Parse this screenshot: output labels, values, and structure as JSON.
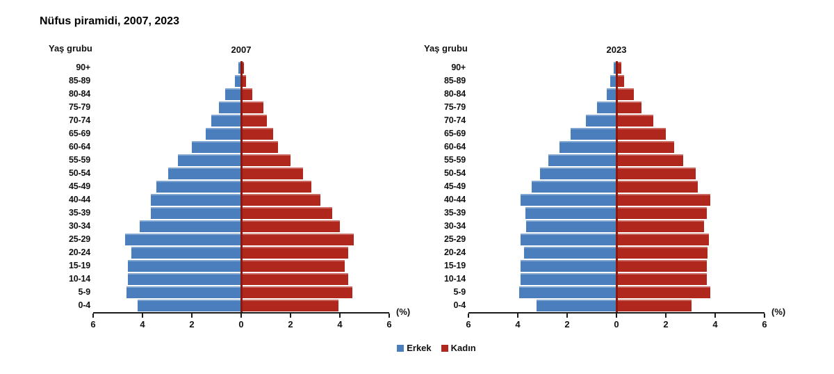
{
  "page": {
    "title": "Nüfus piramidi, 2007, 2023"
  },
  "colors": {
    "male": "#4a7ebc",
    "female": "#b0281d",
    "center_line": "#8a1a10",
    "axis": "#1a1a1a"
  },
  "legend": {
    "items": [
      {
        "label": "Erkek",
        "color": "#4a7ebc"
      },
      {
        "label": "Kadın",
        "color": "#b0281d"
      }
    ]
  },
  "chart_data": [
    {
      "type": "bar",
      "subtype": "population-pyramid",
      "title": "2007",
      "y_axis_title": "Yaş grubu",
      "xlabel": "(%)",
      "xlim": [
        -6,
        6
      ],
      "grid": false,
      "tick_labels": [
        "6",
        "4",
        "2",
        "0",
        "2",
        "4",
        "6"
      ],
      "categories": [
        "90+",
        "85-89",
        "80-84",
        "75-79",
        "70-74",
        "65-69",
        "60-64",
        "55-59",
        "50-54",
        "45-49",
        "40-44",
        "35-39",
        "30-34",
        "25-29",
        "20-24",
        "15-19",
        "10-14",
        "5-9",
        "0-4"
      ],
      "series": [
        {
          "name": "Erkek",
          "values": [
            0.1,
            0.25,
            0.65,
            0.9,
            1.2,
            1.45,
            2.0,
            2.55,
            2.95,
            3.45,
            3.65,
            3.65,
            4.1,
            4.7,
            4.45,
            4.6,
            4.6,
            4.65,
            4.2
          ]
        },
        {
          "name": "Kadın",
          "values": [
            0.1,
            0.2,
            0.45,
            0.9,
            1.05,
            1.3,
            1.5,
            2.0,
            2.5,
            2.85,
            3.2,
            3.7,
            4.0,
            4.55,
            4.35,
            4.2,
            4.35,
            4.5,
            3.95
          ]
        }
      ]
    },
    {
      "type": "bar",
      "subtype": "population-pyramid",
      "title": "2023",
      "y_axis_title": "Yaş grubu",
      "xlabel": "(%)",
      "xlim": [
        -6,
        6
      ],
      "grid": false,
      "tick_labels": [
        "6",
        "4",
        "2",
        "0",
        "2",
        "4",
        "6"
      ],
      "categories": [
        "90+",
        "85-89",
        "80-84",
        "75-79",
        "70-74",
        "65-69",
        "60-64",
        "55-59",
        "50-54",
        "45-49",
        "40-44",
        "35-39",
        "30-34",
        "25-29",
        "20-24",
        "15-19",
        "10-14",
        "5-9",
        "0-4"
      ],
      "series": [
        {
          "name": "Erkek",
          "values": [
            0.1,
            0.25,
            0.4,
            0.8,
            1.25,
            1.85,
            2.3,
            2.75,
            3.1,
            3.45,
            3.9,
            3.7,
            3.65,
            3.9,
            3.75,
            3.9,
            3.9,
            3.95,
            3.25
          ]
        },
        {
          "name": "Kadın",
          "values": [
            0.2,
            0.3,
            0.7,
            1.0,
            1.5,
            2.0,
            2.35,
            2.7,
            3.2,
            3.3,
            3.8,
            3.65,
            3.55,
            3.75,
            3.7,
            3.65,
            3.65,
            3.8,
            3.05
          ]
        }
      ]
    }
  ]
}
